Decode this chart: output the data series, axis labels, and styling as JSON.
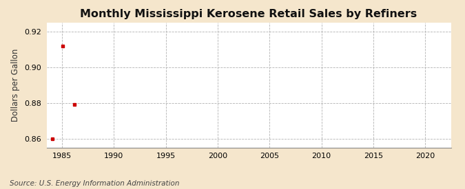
{
  "title": "Monthly Mississippi Kerosene Retail Sales by Refiners",
  "ylabel": "Dollars per Gallon",
  "source": "Source: U.S. Energy Information Administration",
  "x_data": [
    1984.08,
    1985.08,
    1986.17
  ],
  "y_data": [
    0.86,
    0.912,
    0.879
  ],
  "xlim": [
    1983.5,
    2022.5
  ],
  "ylim": [
    0.855,
    0.925
  ],
  "yticks": [
    0.86,
    0.88,
    0.9,
    0.92
  ],
  "xticks": [
    1985,
    1990,
    1995,
    2000,
    2005,
    2010,
    2015,
    2020
  ],
  "marker_color": "#cc0000",
  "marker": "s",
  "marker_size": 3.5,
  "bg_color": "#f5e6cc",
  "plot_bg_color": "#ffffff",
  "grid_color": "#aaaaaa",
  "title_fontsize": 11.5,
  "title_fontweight": "bold",
  "label_fontsize": 8.5,
  "tick_fontsize": 8,
  "source_fontsize": 7.5
}
